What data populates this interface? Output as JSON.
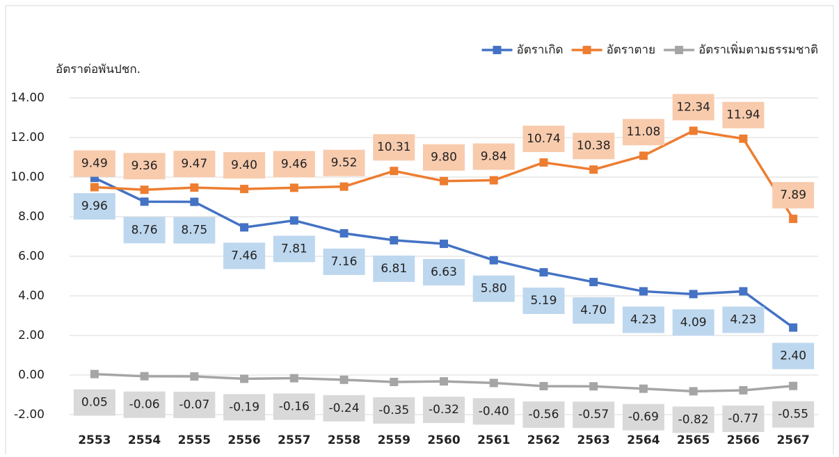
{
  "chart_data": {
    "type": "line",
    "y_axis_label": "อัตราต่อพันปชก.",
    "categories": [
      "2553",
      "2554",
      "2555",
      "2556",
      "2557",
      "2558",
      "2559",
      "2560",
      "2561",
      "2562",
      "2563",
      "2564",
      "2565",
      "2566",
      "2567"
    ],
    "series": [
      {
        "name": "อัตราเกิด",
        "color": "#4472c4",
        "values": [
          9.96,
          8.76,
          8.75,
          7.46,
          7.81,
          7.16,
          6.81,
          6.63,
          5.8,
          5.19,
          4.7,
          4.23,
          4.09,
          4.23,
          2.4
        ],
        "value_labels": [
          "9.96",
          "8.76",
          "8.75",
          "7.46",
          "7.81",
          "7.16",
          "6.81",
          "6.63",
          "5.80",
          "5.19",
          "4.70",
          "4.23",
          "4.09",
          "4.23",
          "2.40"
        ]
      },
      {
        "name": "อัตราตาย",
        "color": "#ed7d31",
        "values": [
          9.49,
          9.36,
          9.47,
          9.4,
          9.46,
          9.52,
          10.31,
          9.8,
          9.84,
          10.74,
          10.38,
          11.08,
          12.34,
          11.94,
          7.89
        ],
        "value_labels": [
          "9.49",
          "9.36",
          "9.47",
          "9.40",
          "9.46",
          "9.52",
          "10.31",
          "9.80",
          "9.84",
          "10.74",
          "10.38",
          "11.08",
          "12.34",
          "11.94",
          "7.89"
        ]
      },
      {
        "name": "อัตราเพิ่มตามธรรมชาติ",
        "color": "#a5a5a5",
        "values": [
          0.05,
          -0.06,
          -0.07,
          -0.19,
          -0.16,
          -0.24,
          -0.35,
          -0.32,
          -0.4,
          -0.56,
          -0.57,
          -0.69,
          -0.82,
          -0.77,
          -0.55
        ],
        "value_labels": [
          "0.05",
          "-0.06",
          "-0.07",
          "-0.19",
          "-0.16",
          "-0.24",
          "-0.35",
          "-0.32",
          "-0.40",
          "-0.56",
          "-0.57",
          "-0.69",
          "-0.82",
          "-0.77",
          "-0.55"
        ]
      }
    ],
    "ylim": [
      -2,
      14
    ],
    "yticks": [
      {
        "value": -2,
        "label": "-2.00"
      },
      {
        "value": 0,
        "label": "0.00"
      },
      {
        "value": 2,
        "label": "2.00"
      },
      {
        "value": 4,
        "label": "4.00"
      },
      {
        "value": 6,
        "label": "6.00"
      },
      {
        "value": 8,
        "label": "8.00"
      },
      {
        "value": 10,
        "label": "10.00"
      },
      {
        "value": 12,
        "label": "12.00"
      },
      {
        "value": 14,
        "label": "14.00"
      }
    ],
    "grid": true,
    "legend": "top-right"
  }
}
